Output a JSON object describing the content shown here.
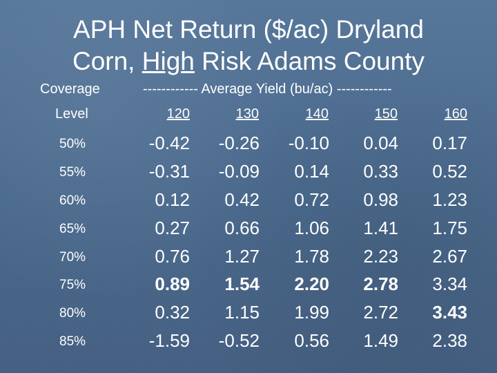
{
  "title": {
    "line1": "APH Net Return ($/ac) Dryland",
    "line2_prefix": "Corn, ",
    "line2_emph": "High",
    "line2_suffix": " Risk Adams County"
  },
  "headers": {
    "coverage": "Coverage",
    "level": "Level",
    "yield_span": "------------ Average Yield (bu/ac) ------------",
    "yield_columns": [
      "120",
      "130",
      "140",
      "150",
      "160"
    ]
  },
  "rows": [
    {
      "level": "50%",
      "values": [
        "-0.42",
        "-0.26",
        "-0.10",
        "0.04",
        "0.17"
      ],
      "bold": [
        false,
        false,
        false,
        false,
        false
      ]
    },
    {
      "level": "55%",
      "values": [
        "-0.31",
        "-0.09",
        "0.14",
        "0.33",
        "0.52"
      ],
      "bold": [
        false,
        false,
        false,
        false,
        false
      ]
    },
    {
      "level": "60%",
      "values": [
        "0.12",
        "0.42",
        "0.72",
        "0.98",
        "1.23"
      ],
      "bold": [
        false,
        false,
        false,
        false,
        false
      ]
    },
    {
      "level": "65%",
      "values": [
        "0.27",
        "0.66",
        "1.06",
        "1.41",
        "1.75"
      ],
      "bold": [
        false,
        false,
        false,
        false,
        false
      ]
    },
    {
      "level": "70%",
      "values": [
        "0.76",
        "1.27",
        "1.78",
        "2.23",
        "2.67"
      ],
      "bold": [
        false,
        false,
        false,
        false,
        false
      ]
    },
    {
      "level": "75%",
      "values": [
        "0.89",
        "1.54",
        "2.20",
        "2.78",
        "3.34"
      ],
      "bold": [
        true,
        true,
        true,
        true,
        false
      ]
    },
    {
      "level": "80%",
      "values": [
        "0.32",
        "1.15",
        "1.99",
        "2.72",
        "3.43"
      ],
      "bold": [
        false,
        false,
        false,
        false,
        true
      ]
    },
    {
      "level": "85%",
      "values": [
        "-1.59",
        "-0.52",
        "0.56",
        "1.49",
        "2.38"
      ],
      "bold": [
        false,
        false,
        false,
        false,
        false
      ]
    }
  ]
}
